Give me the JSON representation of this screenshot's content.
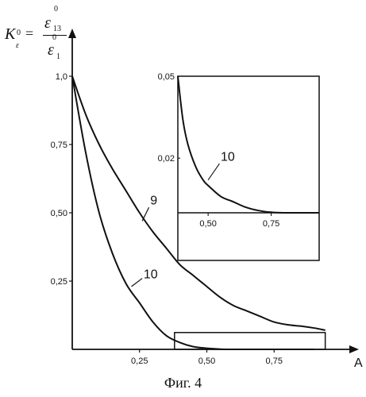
{
  "figure": {
    "caption": "Фиг. 4",
    "y_label": {
      "K": "K",
      "K_sub_top": "0",
      "K_sub_bottom": "ε",
      "equals": "=",
      "num_sup": "0",
      "num_symbol": "ε",
      "num_sub": "13",
      "den_sup": "0",
      "den_symbol": "ε",
      "den_sub": "1"
    },
    "x_label": "A",
    "colors": {
      "ink": "#111111",
      "background": "#ffffff"
    }
  },
  "chart_data": [
    {
      "type": "line",
      "xlabel": "A",
      "ylabel": "K",
      "xlim": [
        0,
        1.0
      ],
      "ylim": [
        0,
        1.0
      ],
      "x_ticks": [
        "0,25",
        "0,50",
        "0,75"
      ],
      "x_tick_values": [
        0.25,
        0.5,
        0.75
      ],
      "y_ticks": [
        "0,25",
        "0,50",
        "0,75",
        "1,0"
      ],
      "y_tick_values": [
        0.25,
        0.5,
        0.75,
        1.0
      ],
      "series": [
        {
          "name": "9",
          "x": [
            0,
            0.05,
            0.1,
            0.15,
            0.2,
            0.25,
            0.3,
            0.35,
            0.4,
            0.45,
            0.5,
            0.55,
            0.6,
            0.65,
            0.7,
            0.75,
            0.8,
            0.85,
            0.9,
            0.94
          ],
          "y": [
            1.0,
            0.86,
            0.75,
            0.66,
            0.58,
            0.5,
            0.43,
            0.37,
            0.31,
            0.27,
            0.23,
            0.19,
            0.16,
            0.14,
            0.12,
            0.1,
            0.09,
            0.085,
            0.078,
            0.07
          ]
        },
        {
          "name": "10",
          "x": [
            0,
            0.05,
            0.1,
            0.15,
            0.2,
            0.25,
            0.3,
            0.35,
            0.4,
            0.45,
            0.5,
            0.55,
            0.6,
            0.7,
            0.8,
            0.9
          ],
          "y": [
            1.0,
            0.72,
            0.5,
            0.35,
            0.24,
            0.17,
            0.1,
            0.05,
            0.025,
            0.01,
            0.004,
            0.001,
            0,
            0,
            0,
            0
          ]
        }
      ],
      "annotations": [
        "9",
        "10"
      ],
      "highlight_box": {
        "x_range": [
          0.38,
          0.94
        ],
        "y_range": [
          0,
          0.05
        ]
      },
      "grid": false
    },
    {
      "type": "line",
      "inset": true,
      "xlim": [
        0.38,
        0.94
      ],
      "ylim": [
        0,
        0.05
      ],
      "x_ticks": [
        "0,50",
        "0,75"
      ],
      "x_tick_values": [
        0.5,
        0.75
      ],
      "y_ticks": [
        "0,02",
        "0,05"
      ],
      "y_tick_values": [
        0.02,
        0.05
      ],
      "series": [
        {
          "name": "10",
          "x": [
            0.38,
            0.4,
            0.42,
            0.45,
            0.48,
            0.5,
            0.55,
            0.6,
            0.65,
            0.7,
            0.75,
            0.8,
            0.94
          ],
          "y": [
            0.05,
            0.034,
            0.025,
            0.017,
            0.012,
            0.01,
            0.006,
            0.004,
            0.002,
            0.0008,
            0.0002,
            0,
            0
          ]
        }
      ],
      "annotations": [
        "10"
      ],
      "grid": false
    }
  ]
}
